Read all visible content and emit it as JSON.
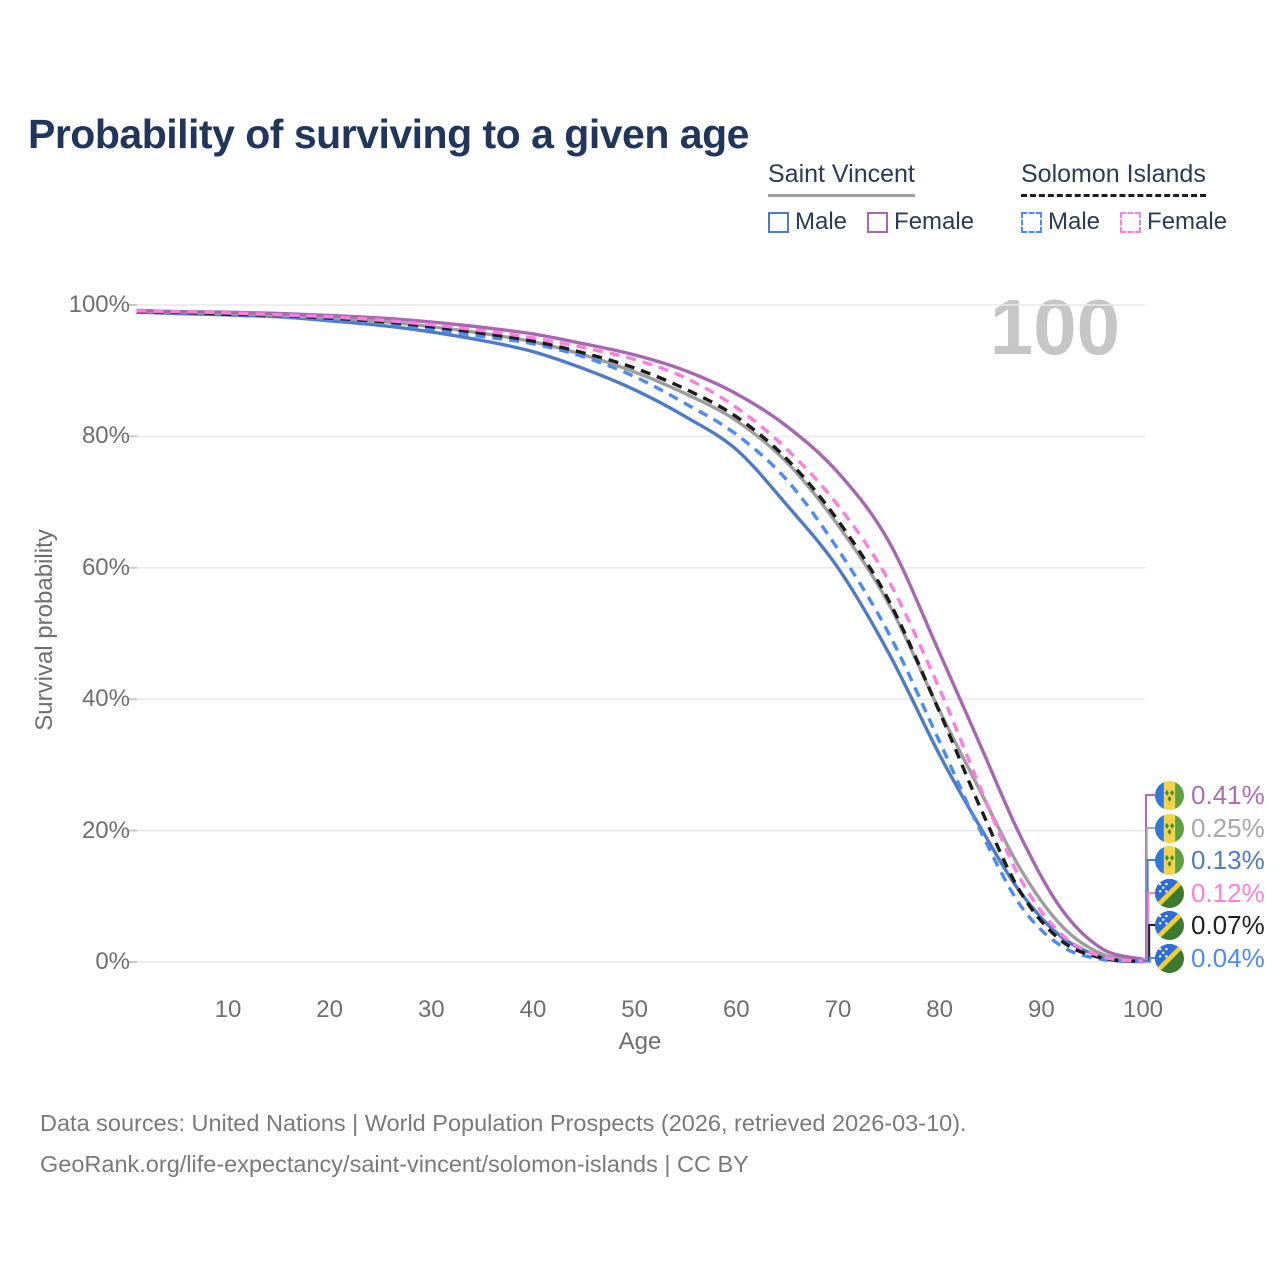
{
  "title": "Probability of surviving to a given age",
  "watermark": "100",
  "legend": {
    "groups": [
      {
        "name": "Saint Vincent",
        "line_style": "solid",
        "underline_color": "#9e9e9e",
        "items": [
          {
            "label": "Male",
            "color": "#4d7cc4",
            "dashed": false
          },
          {
            "label": "Female",
            "color": "#a767b3",
            "dashed": false
          }
        ]
      },
      {
        "name": "Solomon Islands",
        "line_style": "dashed",
        "underline_color": "#1c1c1c",
        "items": [
          {
            "label": "Male",
            "color": "#4b8bf5",
            "dashed": true
          },
          {
            "label": "Female",
            "color": "#ff7ce0",
            "dashed": true
          }
        ]
      }
    ]
  },
  "axes": {
    "y_label": "Survival probability",
    "x_label": "Age",
    "y_ticks": [
      "100%",
      "80%",
      "60%",
      "40%",
      "20%",
      "0%"
    ],
    "y_tick_values": [
      100,
      80,
      60,
      40,
      20,
      0
    ],
    "x_ticks": [
      "10",
      "20",
      "30",
      "40",
      "50",
      "60",
      "70",
      "80",
      "90",
      "100"
    ],
    "x_tick_values": [
      10,
      20,
      30,
      40,
      50,
      60,
      70,
      80,
      90,
      100
    ]
  },
  "chart_data": {
    "type": "line",
    "title": "Probability of surviving to a given age",
    "xlabel": "Age",
    "ylabel": "Survival probability",
    "xlim": [
      1,
      100
    ],
    "ylim": [
      0,
      100
    ],
    "grid": "horizontal-only",
    "ages": [
      1,
      5,
      10,
      15,
      20,
      25,
      30,
      35,
      40,
      45,
      50,
      55,
      60,
      65,
      70,
      75,
      80,
      84,
      88,
      92,
      96,
      100
    ],
    "series": [
      {
        "id": "sv_male",
        "name": "Saint Vincent Male",
        "country": "Saint Vincent",
        "sex": "Male",
        "color": "#4d7cc4",
        "dashed": false,
        "values": [
          98.9,
          98.7,
          98.5,
          98.2,
          97.6,
          96.9,
          95.9,
          94.6,
          92.9,
          90.3,
          87.1,
          83.0,
          78.0,
          69.5,
          60.0,
          47.0,
          31.5,
          20.5,
          10.5,
          3.8,
          0.8,
          0.13
        ]
      },
      {
        "id": "sv_total",
        "name": "Saint Vincent Both sexes",
        "country": "Saint Vincent",
        "sex": "Both",
        "color": "#9e9e9e",
        "dashed": false,
        "values": [
          99.0,
          98.9,
          98.7,
          98.4,
          98.0,
          97.5,
          96.7,
          95.7,
          94.4,
          92.4,
          89.8,
          86.5,
          82.4,
          76.0,
          66.5,
          54.5,
          38.2,
          26.0,
          14.0,
          5.5,
          1.2,
          0.25
        ]
      },
      {
        "id": "sv_female",
        "name": "Saint Vincent Female",
        "country": "Saint Vincent",
        "sex": "Female",
        "color": "#a767b3",
        "dashed": false,
        "values": [
          99.2,
          99.0,
          98.9,
          98.7,
          98.4,
          98.0,
          97.4,
          96.6,
          95.6,
          94.1,
          92.4,
          90.0,
          86.5,
          81.5,
          74.5,
          64.0,
          47.0,
          33.0,
          19.0,
          8.0,
          2.0,
          0.41
        ]
      },
      {
        "id": "si_male",
        "name": "Solomon Islands Male",
        "country": "Solomon Islands",
        "sex": "Male",
        "color": "#4b8bf5",
        "dashed": true,
        "values": [
          98.9,
          98.8,
          98.5,
          98.2,
          97.8,
          97.2,
          96.3,
          95.2,
          94.1,
          92.1,
          89.1,
          85.0,
          80.3,
          73.3,
          62.8,
          50.0,
          33.5,
          20.0,
          8.5,
          2.4,
          0.4,
          0.04
        ]
      },
      {
        "id": "si_total",
        "name": "Solomon Islands Both sexes",
        "country": "Solomon Islands",
        "sex": "Both",
        "color": "#1c1c1c",
        "dashed": true,
        "values": [
          99.0,
          98.9,
          98.6,
          98.4,
          98.0,
          97.5,
          96.7,
          95.7,
          94.5,
          92.7,
          90.4,
          87.2,
          83.0,
          76.5,
          67.2,
          55.0,
          38.0,
          23.5,
          10.5,
          3.2,
          0.6,
          0.07
        ]
      },
      {
        "id": "si_female",
        "name": "Solomon Islands Female",
        "country": "Solomon Islands",
        "sex": "Female",
        "color": "#ff7ce0",
        "dashed": true,
        "values": [
          99.1,
          99.0,
          98.8,
          98.5,
          98.2,
          97.7,
          97.0,
          96.1,
          95.0,
          93.5,
          91.7,
          88.9,
          84.4,
          78.0,
          69.5,
          58.0,
          41.5,
          26.5,
          12.5,
          4.2,
          0.8,
          0.12
        ]
      }
    ],
    "end_labels": [
      {
        "value": "0.41%",
        "series_id": "sv_female",
        "flag": "saint-vincent",
        "color": "#b26bb2"
      },
      {
        "value": "0.25%",
        "series_id": "sv_total",
        "flag": "saint-vincent",
        "color": "#a9a9a9"
      },
      {
        "value": "0.13%",
        "series_id": "sv_male",
        "flag": "saint-vincent",
        "color": "#4d7cc4"
      },
      {
        "value": "0.12%",
        "series_id": "si_female",
        "flag": "solomon-islands",
        "color": "#ff7ce0"
      },
      {
        "value": "0.07%",
        "series_id": "si_total",
        "flag": "solomon-islands",
        "color": "#1f1f1f"
      },
      {
        "value": "0.04%",
        "series_id": "si_male",
        "flag": "solomon-islands",
        "color": "#4b8bf5"
      }
    ]
  },
  "footer": {
    "line1": "Data sources: United Nations | World Population Prospects (2026, retrieved 2026-03-10).",
    "line2": "GeoRank.org/life-expectancy/saint-vincent/solomon-islands | CC BY"
  }
}
